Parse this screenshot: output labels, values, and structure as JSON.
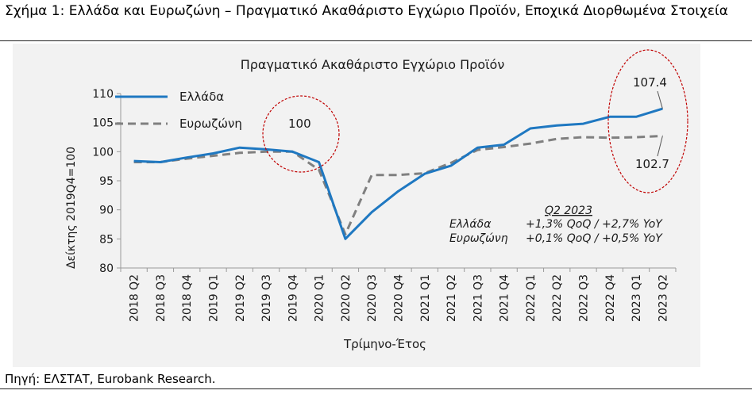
{
  "figure": {
    "title": "Σχήμα 1: Ελλάδα και Ευρωζώνη – Πραγματικό Ακαθάριστο Εγχώριο Προϊόν, Εποχικά Διορθωμένα Στοιχεία",
    "source": "Πηγή: ΕΛΣΤΑΤ, Eurobank Research."
  },
  "chart_data": {
    "type": "line",
    "title": "Πραγματικό Ακαθάριστο Εγχώριο Προϊόν",
    "xlabel": "Τρίμηνο-Έτος",
    "ylabel": "Δείκτης 2019Q4=100",
    "ylim": [
      80,
      110
    ],
    "yticks": [
      80,
      85,
      90,
      95,
      100,
      105,
      110
    ],
    "grid": false,
    "legend_position": "top-left",
    "categories": [
      "2018 Q2",
      "2018 Q3",
      "2018 Q4",
      "2019 Q1",
      "2019 Q2",
      "2019 Q3",
      "2019 Q4",
      "2020 Q1",
      "2020 Q2",
      "2020 Q3",
      "2020 Q4",
      "2021 Q1",
      "2021 Q2",
      "2021 Q3",
      "2021 Q4",
      "2022 Q1",
      "2022 Q2",
      "2022 Q3",
      "2022 Q4",
      "2023 Q1",
      "2023 Q2"
    ],
    "series": [
      {
        "name": "Ελλάδα",
        "style": "solid",
        "color": "#1f78c1",
        "values": [
          98.4,
          98.2,
          99.0,
          99.7,
          100.7,
          100.4,
          100.0,
          98.2,
          85.0,
          89.6,
          93.2,
          96.2,
          97.6,
          100.7,
          101.2,
          104.0,
          104.5,
          104.8,
          106.0,
          106.0,
          107.4
        ]
      },
      {
        "name": "Ευρωζώνη",
        "style": "dashed",
        "color": "#808080",
        "values": [
          98.2,
          98.2,
          98.8,
          99.3,
          99.8,
          100.0,
          100.0,
          96.9,
          85.8,
          96.0,
          96.0,
          96.3,
          98.1,
          100.3,
          100.8,
          101.4,
          102.2,
          102.5,
          102.4,
          102.5,
          102.7
        ]
      }
    ],
    "annotations": {
      "label_100": "100",
      "label_greece_last": "107.4",
      "label_euro_last": "102.7",
      "q2_title": "Q2 2023",
      "q2_lines": [
        {
          "name": "Ελλάδα",
          "text": "+1,3% QoQ / +2,7% YoY"
        },
        {
          "name": "Ευρωζώνη",
          "text": "+0,1% QoQ / +0,5% YoY"
        }
      ]
    }
  }
}
